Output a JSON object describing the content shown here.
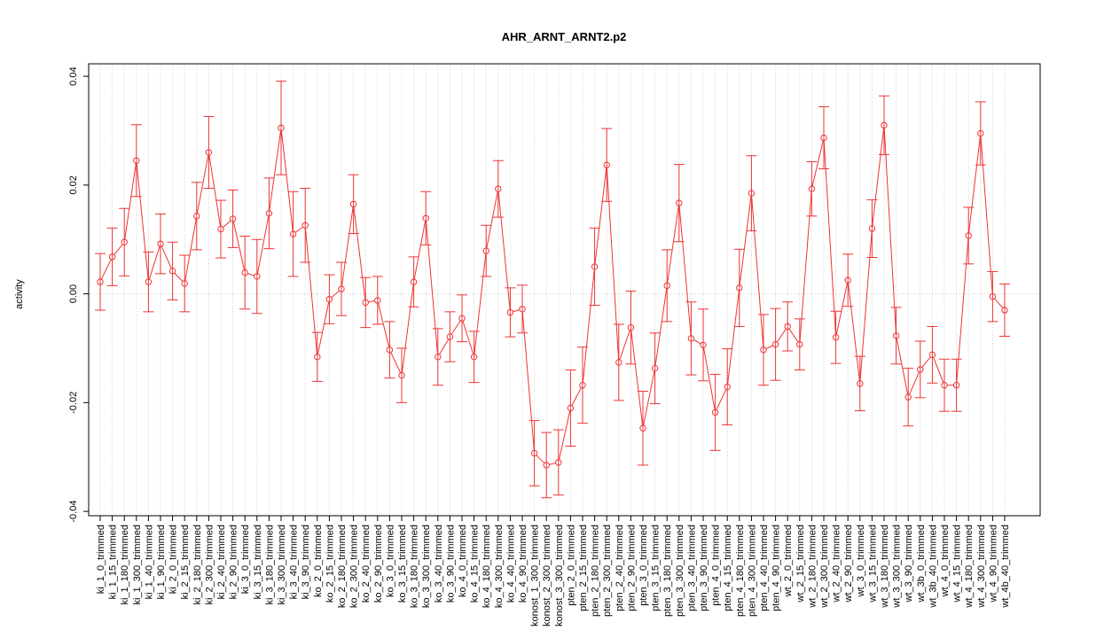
{
  "chart_data": {
    "type": "errorbar_line",
    "title": "AHR_ARNT_ARNT2.p2",
    "y_label": "activity",
    "color": "#ee3333",
    "grid": true,
    "hline": 0,
    "ylim": [
      -0.0408,
      0.0423
    ],
    "yticks": [
      -0.04,
      -0.02,
      {
        "value": 0,
        "label": "0.00"
      },
      0.02,
      0.04
    ],
    "categories": [
      "ki_1_0_trimmed",
      "ki_1_15_trimmed",
      "ki_1_180_trimmed",
      "ki_1_300_trimmed",
      "ki_1_40_trimmed",
      "ki_1_90_trimmed",
      "ki_2_0_trimmed",
      "ki_2_15_trimmed",
      "ki_2_180_trimmed",
      "ki_2_300_trimmed",
      "ki_2_40_trimmed",
      "ki_2_90_trimmed",
      "ki_3_0_trimmed",
      "ki_3_15_trimmed",
      "ki_3_180_trimmed",
      "ki_3_300_trimmed",
      "ki_3_40_trimmed",
      "ki_3_90_trimmed",
      "ko_2_0_trimmed",
      "ko_2_15_trimmed",
      "ko_2_180_trimmed",
      "ko_2_300_trimmed",
      "ko_2_40_trimmed",
      "ko_2_90_trimmed",
      "ko_3_0_trimmed",
      "ko_3_15_trimmed",
      "ko_3_180_trimmed",
      "ko_3_300_trimmed",
      "ko_3_40_trimmed",
      "ko_3_90_trimmed",
      "ko_4_0_trimmed",
      "ko_4_15_trimmed",
      "ko_4_180_trimmed",
      "ko_4_300_trimmed",
      "ko_4_40_trimmed",
      "ko_4_90_trimmed",
      "konost_1_300_trimmed",
      "konost_2_300_trimmed",
      "konost_3_300_trimmed",
      "pten_2_0_trimmed",
      "pten_2_15_trimmed",
      "pten_2_180_trimmed",
      "pten_2_300_trimmed",
      "pten_2_40_trimmed",
      "pten_2_90_trimmed",
      "pten_3_0_trimmed",
      "pten_3_15_trimmed",
      "pten_3_180_trimmed",
      "pten_3_300_trimmed",
      "pten_3_40_trimmed",
      "pten_3_90_trimmed",
      "pten_4_0_trimmed",
      "pten_4_15_trimmed",
      "pten_4_180_trimmed",
      "pten_4_300_trimmed",
      "pten_4_40_trimmed",
      "pten_4_90_trimmed",
      "wt_2_0_trimmed",
      "wt_2_15_trimmed",
      "wt_2_180_trimmed",
      "wt_2_300_trimmed",
      "wt_2_40_trimmed",
      "wt_2_90_trimmed",
      "wt_3_0_trimmed",
      "wt_3_15_trimmed",
      "wt_3_180_trimmed",
      "wt_3_300_trimmed",
      "wt_3_90_trimmed",
      "wt_3b_0_trimmed",
      "wt_3b_40_trimmed",
      "wt_4_0_trimmed",
      "wt_4_15_trimmed",
      "wt_4_180_trimmed",
      "wt_4_300_trimmed",
      "wt_4_90_trimmed",
      "wt_4b_40_trimmed"
    ],
    "values": [
      0.0022,
      0.0068,
      0.0095,
      0.0245,
      0.0022,
      0.0092,
      0.0042,
      0.0019,
      0.0143,
      0.026,
      0.0119,
      0.0138,
      0.0039,
      0.0032,
      0.0148,
      0.0305,
      0.011,
      0.0126,
      -0.0116,
      -0.001,
      0.0009,
      0.0165,
      -0.0016,
      -0.0012,
      -0.0103,
      -0.015,
      0.0022,
      0.0139,
      -0.0116,
      -0.0079,
      -0.0045,
      -0.0116,
      0.0079,
      0.0193,
      -0.0034,
      -0.0028,
      -0.0293,
      -0.0315,
      -0.031,
      -0.021,
      -0.0168,
      0.005,
      0.0237,
      -0.0126,
      -0.0062,
      -0.0247,
      -0.0137,
      0.0015,
      0.0167,
      -0.0082,
      -0.0094,
      -0.0218,
      -0.0171,
      0.0011,
      0.0185,
      -0.0103,
      -0.0093,
      -0.006,
      -0.0093,
      0.0193,
      0.0287,
      -0.008,
      0.0025,
      -0.0165,
      0.012,
      0.031,
      -0.0077,
      -0.019,
      -0.0139,
      -0.0112,
      -0.0168,
      -0.0168,
      0.0107,
      0.0295,
      -0.0005,
      -0.003
    ],
    "errors": [
      0.0052,
      0.0053,
      0.0062,
      0.0066,
      0.0055,
      0.0055,
      0.0053,
      0.0052,
      0.0062,
      0.0066,
      0.0053,
      0.0053,
      0.0067,
      0.0068,
      0.0065,
      0.0086,
      0.0078,
      0.0068,
      0.0045,
      0.0045,
      0.0049,
      0.0054,
      0.0046,
      0.0044,
      0.0052,
      0.005,
      0.0046,
      0.0049,
      0.0052,
      0.0046,
      0.0043,
      0.0047,
      0.0047,
      0.0052,
      0.0045,
      0.0044,
      0.006,
      0.006,
      0.006,
      0.007,
      0.007,
      0.0071,
      0.0067,
      0.007,
      0.0067,
      0.0068,
      0.0065,
      0.0066,
      0.0071,
      0.0067,
      0.0066,
      0.007,
      0.007,
      0.0071,
      0.0069,
      0.0065,
      0.0066,
      0.0045,
      0.0047,
      0.005,
      0.0057,
      0.0048,
      0.0048,
      0.005,
      0.0053,
      0.0054,
      0.0052,
      0.0053,
      0.0052,
      0.0052,
      0.0048,
      0.0048,
      0.0052,
      0.0058,
      0.0046,
      0.0048
    ]
  }
}
